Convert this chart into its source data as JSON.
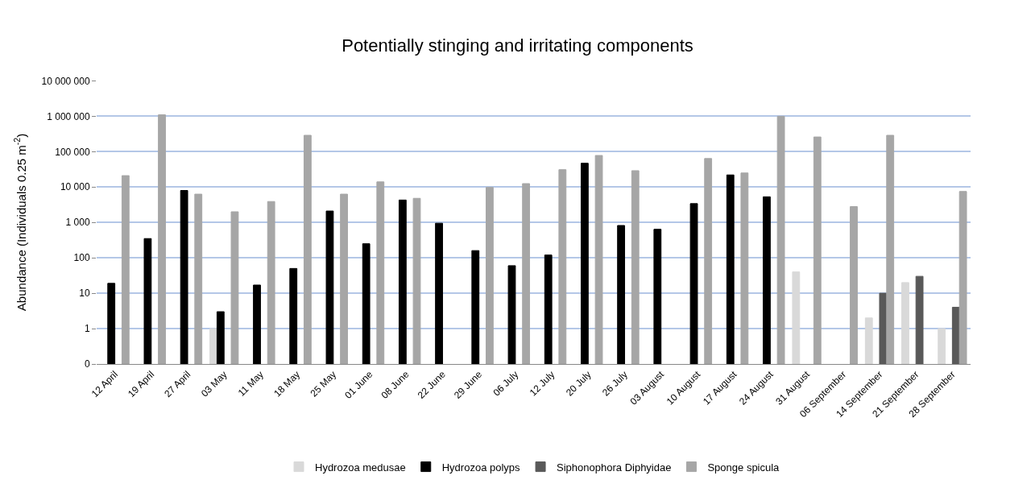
{
  "chart_data": {
    "type": "bar",
    "title": "Potentially stinging and irritating components",
    "ylabel": "Abundance (Individuals 0.25 m$^{-2}$)",
    "categories": [
      "12 April",
      "19 April",
      "27 April",
      "03 May",
      "11 May",
      "18 May",
      "25 May",
      "01 June",
      "08 June",
      "22 June",
      "29 June",
      "06 July",
      "12 July",
      "20 July",
      "26 July",
      "03 August",
      "10 August",
      "17 August",
      "24 August",
      "31 August",
      "06 September",
      "14 September",
      "21 September",
      "28 September"
    ],
    "series": [
      {
        "name": "Hydrozoa medusae",
        "color": "#d9d9d9",
        "values": [
          null,
          null,
          null,
          1,
          null,
          null,
          null,
          null,
          null,
          null,
          null,
          null,
          null,
          null,
          null,
          null,
          null,
          null,
          null,
          40,
          null,
          2,
          20,
          1
        ]
      },
      {
        "name": "Hydrozoa polyps",
        "color": "#000000",
        "values": [
          19,
          350,
          8000,
          3,
          17,
          50,
          2100,
          250,
          4300,
          950,
          160,
          60,
          120,
          47000,
          820,
          640,
          3400,
          22000,
          5300,
          null,
          null,
          null,
          null,
          null
        ]
      },
      {
        "name": "Siphonophora Diphyidae",
        "color": "#595959",
        "values": [
          null,
          null,
          null,
          null,
          null,
          null,
          null,
          null,
          null,
          null,
          null,
          null,
          null,
          null,
          null,
          null,
          null,
          null,
          null,
          null,
          null,
          10,
          30,
          4
        ]
      },
      {
        "name": "Sponge spicula",
        "color": "#a6a6a6",
        "values": [
          21000,
          1100000,
          6300,
          2000,
          3900,
          290000,
          6300,
          14000,
          4800,
          null,
          9800,
          12500,
          31000,
          78000,
          29000,
          null,
          64000,
          25000,
          1000000,
          260000,
          2800,
          290000,
          null,
          7500
        ]
      }
    ],
    "log": "y",
    "ylim": [
      0.1,
      10000000
    ],
    "yticks": [
      {
        "value": 0.1,
        "label": "0"
      },
      1,
      10,
      100,
      {
        "value": 1000,
        "label": "1 000"
      },
      {
        "value": 10000,
        "label": "10 000"
      },
      {
        "value": 100000,
        "label": "100 000"
      },
      {
        "value": 1000000,
        "label": "1 000 000"
      },
      {
        "value": 10000000,
        "label": "10 000 000"
      }
    ],
    "grid": "y",
    "legend": "bottom"
  }
}
